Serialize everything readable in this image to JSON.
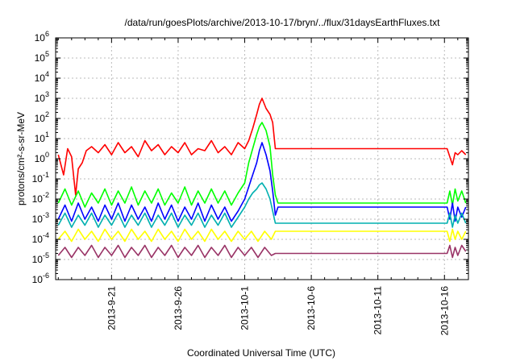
{
  "chart_data": {
    "type": "line",
    "title": "/data/run/goesPlots/archive/2013-10-17/bryn/../flux/31daysEarthFluxes.txt",
    "xlabel": "Coordinated Universal Time (UTC)",
    "ylabel": "protons/cm²-s-sr-MeV",
    "y_scale": "log",
    "ylim_exponents": [
      -6,
      6
    ],
    "xlim_days": [
      -4.2,
      26.8
    ],
    "x_tick_labels": [
      "2013-9-21",
      "2013-9-26",
      "2013-10-1",
      "2013-10-6",
      "2013-10-11",
      "2013-10-16"
    ],
    "y_tick_labels": [
      {
        "base": "10",
        "exp": "6"
      },
      {
        "base": "10",
        "exp": "5"
      },
      {
        "base": "10",
        "exp": "4"
      },
      {
        "base": "10",
        "exp": "3"
      },
      {
        "base": "10",
        "exp": "2"
      },
      {
        "base": "10",
        "exp": "1"
      },
      {
        "base": "10",
        "exp": "0"
      },
      {
        "base": "10",
        "exp": "-1"
      },
      {
        "base": "10",
        "exp": "-2"
      },
      {
        "base": "10",
        "exp": "-3"
      },
      {
        "base": "10",
        "exp": "-4"
      },
      {
        "base": "10",
        "exp": "-5"
      },
      {
        "base": "10",
        "exp": "-6"
      }
    ],
    "grid": true,
    "legend": false,
    "series": [
      {
        "color": "#ff0000",
        "log_values": [
          [
            -4.0,
            0.2
          ],
          [
            -3.6,
            -0.8
          ],
          [
            -3.3,
            0.5
          ],
          [
            -3.0,
            0.1
          ],
          [
            -2.7,
            -1.8
          ],
          [
            -2.5,
            -0.5
          ],
          [
            -2.2,
            -0.2
          ],
          [
            -1.9,
            0.4
          ],
          [
            -1.5,
            0.6
          ],
          [
            -1.0,
            0.3
          ],
          [
            -0.5,
            0.7
          ],
          [
            0.0,
            0.2
          ],
          [
            0.5,
            0.8
          ],
          [
            1.0,
            0.3
          ],
          [
            1.5,
            0.6
          ],
          [
            2.0,
            0.1
          ],
          [
            2.5,
            0.9
          ],
          [
            3.0,
            0.4
          ],
          [
            3.5,
            0.7
          ],
          [
            4.0,
            0.2
          ],
          [
            4.5,
            0.6
          ],
          [
            5.0,
            0.3
          ],
          [
            5.5,
            0.8
          ],
          [
            6.0,
            0.2
          ],
          [
            6.5,
            0.5
          ],
          [
            7.0,
            0.4
          ],
          [
            7.5,
            0.9
          ],
          [
            8.0,
            0.3
          ],
          [
            8.5,
            0.6
          ],
          [
            9.0,
            0.2
          ],
          [
            9.5,
            0.8
          ],
          [
            10.0,
            0.5
          ],
          [
            10.3,
            0.9
          ],
          [
            10.6,
            1.5
          ],
          [
            10.9,
            2.2
          ],
          [
            11.1,
            2.7
          ],
          [
            11.3,
            3.0
          ],
          [
            11.6,
            2.5
          ],
          [
            11.9,
            2.2
          ],
          [
            12.1,
            1.8
          ],
          [
            12.3,
            0.5
          ],
          [
            12.5,
            0.5
          ],
          [
            25.2,
            0.5
          ],
          [
            25.4,
            0.1
          ],
          [
            25.6,
            -0.3
          ],
          [
            25.8,
            0.3
          ],
          [
            26.0,
            0.2
          ],
          [
            26.3,
            0.4
          ],
          [
            26.6,
            0.2
          ]
        ]
      },
      {
        "color": "#00ff00",
        "log_values": [
          [
            -4.0,
            -2.2
          ],
          [
            -3.5,
            -1.5
          ],
          [
            -3.0,
            -2.3
          ],
          [
            -2.5,
            -1.6
          ],
          [
            -2.0,
            -2.4
          ],
          [
            -1.5,
            -1.7
          ],
          [
            -1.0,
            -2.2
          ],
          [
            -0.5,
            -1.5
          ],
          [
            0.0,
            -2.3
          ],
          [
            0.5,
            -1.6
          ],
          [
            1.0,
            -2.2
          ],
          [
            1.5,
            -1.4
          ],
          [
            2.0,
            -2.3
          ],
          [
            2.5,
            -1.6
          ],
          [
            3.0,
            -2.2
          ],
          [
            3.5,
            -1.5
          ],
          [
            4.0,
            -2.3
          ],
          [
            4.5,
            -1.7
          ],
          [
            5.0,
            -2.2
          ],
          [
            5.5,
            -1.4
          ],
          [
            6.0,
            -2.3
          ],
          [
            6.5,
            -1.6
          ],
          [
            7.0,
            -2.2
          ],
          [
            7.5,
            -1.5
          ],
          [
            8.0,
            -2.2
          ],
          [
            8.5,
            -1.6
          ],
          [
            9.0,
            -2.3
          ],
          [
            9.5,
            -1.7
          ],
          [
            10.0,
            -1.2
          ],
          [
            10.3,
            -0.2
          ],
          [
            10.6,
            0.5
          ],
          [
            10.9,
            1.2
          ],
          [
            11.1,
            1.6
          ],
          [
            11.3,
            1.8
          ],
          [
            11.6,
            1.4
          ],
          [
            11.9,
            0.6
          ],
          [
            12.1,
            -0.8
          ],
          [
            12.3,
            -1.8
          ],
          [
            12.5,
            -2.2
          ],
          [
            25.2,
            -2.2
          ],
          [
            25.4,
            -1.6
          ],
          [
            25.6,
            -2.3
          ],
          [
            25.8,
            -1.5
          ],
          [
            26.0,
            -2.1
          ],
          [
            26.3,
            -1.6
          ],
          [
            26.6,
            -2.2
          ]
        ]
      },
      {
        "color": "#0000ff",
        "log_values": [
          [
            -4.0,
            -3.0
          ],
          [
            -3.5,
            -2.3
          ],
          [
            -3.0,
            -3.1
          ],
          [
            -2.5,
            -2.2
          ],
          [
            -2.0,
            -3.0
          ],
          [
            -1.5,
            -2.4
          ],
          [
            -1.0,
            -3.1
          ],
          [
            -0.5,
            -2.3
          ],
          [
            0.0,
            -3.0
          ],
          [
            0.5,
            -2.2
          ],
          [
            1.0,
            -3.1
          ],
          [
            1.5,
            -2.3
          ],
          [
            2.0,
            -3.0
          ],
          [
            2.5,
            -2.4
          ],
          [
            3.0,
            -3.1
          ],
          [
            3.5,
            -2.2
          ],
          [
            4.0,
            -3.0
          ],
          [
            4.5,
            -2.3
          ],
          [
            5.0,
            -3.1
          ],
          [
            5.5,
            -2.4
          ],
          [
            6.0,
            -3.0
          ],
          [
            6.5,
            -2.2
          ],
          [
            7.0,
            -3.1
          ],
          [
            7.5,
            -2.3
          ],
          [
            8.0,
            -3.0
          ],
          [
            8.5,
            -2.4
          ],
          [
            9.0,
            -3.1
          ],
          [
            9.5,
            -2.6
          ],
          [
            10.0,
            -2.0
          ],
          [
            10.3,
            -1.4
          ],
          [
            10.6,
            -0.8
          ],
          [
            10.9,
            -0.2
          ],
          [
            11.1,
            0.4
          ],
          [
            11.3,
            0.8
          ],
          [
            11.6,
            0.2
          ],
          [
            11.9,
            -0.6
          ],
          [
            12.1,
            -1.6
          ],
          [
            12.3,
            -2.8
          ],
          [
            12.5,
            -2.4
          ],
          [
            25.2,
            -2.4
          ],
          [
            25.4,
            -3.0
          ],
          [
            25.6,
            -2.2
          ],
          [
            25.8,
            -3.1
          ],
          [
            26.0,
            -2.4
          ],
          [
            26.3,
            -2.9
          ],
          [
            26.6,
            -2.4
          ]
        ]
      },
      {
        "color": "#00b0b0",
        "log_values": [
          [
            -4.0,
            -3.3
          ],
          [
            -3.5,
            -2.7
          ],
          [
            -3.0,
            -3.4
          ],
          [
            -2.5,
            -2.8
          ],
          [
            -2.0,
            -3.3
          ],
          [
            -1.5,
            -2.7
          ],
          [
            -1.0,
            -3.4
          ],
          [
            -0.5,
            -2.8
          ],
          [
            0.0,
            -3.3
          ],
          [
            0.5,
            -2.7
          ],
          [
            1.0,
            -3.4
          ],
          [
            1.5,
            -2.8
          ],
          [
            2.0,
            -3.3
          ],
          [
            2.5,
            -2.7
          ],
          [
            3.0,
            -3.4
          ],
          [
            3.5,
            -2.8
          ],
          [
            4.0,
            -3.3
          ],
          [
            4.5,
            -2.7
          ],
          [
            5.0,
            -3.4
          ],
          [
            5.5,
            -2.8
          ],
          [
            6.0,
            -3.3
          ],
          [
            6.5,
            -2.7
          ],
          [
            7.0,
            -3.4
          ],
          [
            7.5,
            -2.8
          ],
          [
            8.0,
            -3.3
          ],
          [
            8.5,
            -2.7
          ],
          [
            9.0,
            -3.4
          ],
          [
            9.5,
            -2.9
          ],
          [
            10.0,
            -2.4
          ],
          [
            10.3,
            -2.0
          ],
          [
            10.6,
            -1.7
          ],
          [
            10.9,
            -1.5
          ],
          [
            11.1,
            -1.3
          ],
          [
            11.3,
            -1.2
          ],
          [
            11.6,
            -1.5
          ],
          [
            11.9,
            -2.0
          ],
          [
            12.1,
            -2.6
          ],
          [
            12.3,
            -3.2
          ],
          [
            12.5,
            -3.2
          ],
          [
            25.2,
            -3.2
          ],
          [
            25.4,
            -2.7
          ],
          [
            25.6,
            -3.4
          ],
          [
            25.8,
            -2.8
          ],
          [
            26.0,
            -3.2
          ],
          [
            26.3,
            -2.7
          ],
          [
            26.6,
            -3.2
          ]
        ]
      },
      {
        "color": "#ffff00",
        "log_values": [
          [
            -4.0,
            -4.0
          ],
          [
            -3.5,
            -3.6
          ],
          [
            -3.0,
            -4.1
          ],
          [
            -2.5,
            -3.5
          ],
          [
            -2.0,
            -4.0
          ],
          [
            -1.5,
            -3.6
          ],
          [
            -1.0,
            -4.1
          ],
          [
            -0.5,
            -3.5
          ],
          [
            0.0,
            -4.0
          ],
          [
            0.5,
            -3.6
          ],
          [
            1.0,
            -4.1
          ],
          [
            1.5,
            -3.5
          ],
          [
            2.0,
            -4.0
          ],
          [
            2.5,
            -3.6
          ],
          [
            3.0,
            -4.1
          ],
          [
            3.5,
            -3.5
          ],
          [
            4.0,
            -4.0
          ],
          [
            4.5,
            -3.6
          ],
          [
            5.0,
            -4.1
          ],
          [
            5.5,
            -3.5
          ],
          [
            6.0,
            -4.0
          ],
          [
            6.5,
            -3.6
          ],
          [
            7.0,
            -4.1
          ],
          [
            7.5,
            -3.5
          ],
          [
            8.0,
            -4.0
          ],
          [
            8.5,
            -3.6
          ],
          [
            9.0,
            -4.1
          ],
          [
            9.5,
            -3.6
          ],
          [
            10.0,
            -4.0
          ],
          [
            10.5,
            -3.6
          ],
          [
            11.0,
            -4.1
          ],
          [
            11.5,
            -3.6
          ],
          [
            12.0,
            -4.0
          ],
          [
            12.3,
            -3.6
          ],
          [
            12.5,
            -3.6
          ],
          [
            25.2,
            -3.6
          ],
          [
            25.4,
            -4.1
          ],
          [
            25.6,
            -3.5
          ],
          [
            25.8,
            -4.0
          ],
          [
            26.0,
            -3.6
          ],
          [
            26.3,
            -4.0
          ],
          [
            26.6,
            -3.6
          ]
        ]
      },
      {
        "color": "#993366",
        "log_values": [
          [
            -4.0,
            -4.8
          ],
          [
            -3.5,
            -4.4
          ],
          [
            -3.0,
            -4.9
          ],
          [
            -2.5,
            -4.4
          ],
          [
            -2.0,
            -4.8
          ],
          [
            -1.5,
            -4.3
          ],
          [
            -1.0,
            -4.9
          ],
          [
            -0.5,
            -4.4
          ],
          [
            0.0,
            -4.8
          ],
          [
            0.5,
            -4.3
          ],
          [
            1.0,
            -4.9
          ],
          [
            1.5,
            -4.4
          ],
          [
            2.0,
            -4.8
          ],
          [
            2.5,
            -4.3
          ],
          [
            3.0,
            -4.9
          ],
          [
            3.5,
            -4.4
          ],
          [
            4.0,
            -4.8
          ],
          [
            4.5,
            -4.3
          ],
          [
            5.0,
            -4.9
          ],
          [
            5.5,
            -4.4
          ],
          [
            6.0,
            -4.8
          ],
          [
            6.5,
            -4.3
          ],
          [
            7.0,
            -4.9
          ],
          [
            7.5,
            -4.4
          ],
          [
            8.0,
            -4.8
          ],
          [
            8.5,
            -4.3
          ],
          [
            9.0,
            -4.9
          ],
          [
            9.5,
            -4.4
          ],
          [
            10.0,
            -4.8
          ],
          [
            10.5,
            -4.4
          ],
          [
            11.0,
            -4.9
          ],
          [
            11.5,
            -4.4
          ],
          [
            12.0,
            -4.8
          ],
          [
            12.3,
            -4.7
          ],
          [
            12.5,
            -4.7
          ],
          [
            25.2,
            -4.7
          ],
          [
            25.4,
            -4.3
          ],
          [
            25.6,
            -4.9
          ],
          [
            25.8,
            -4.4
          ],
          [
            26.0,
            -4.8
          ],
          [
            26.3,
            -4.3
          ],
          [
            26.6,
            -4.6
          ]
        ]
      }
    ]
  }
}
